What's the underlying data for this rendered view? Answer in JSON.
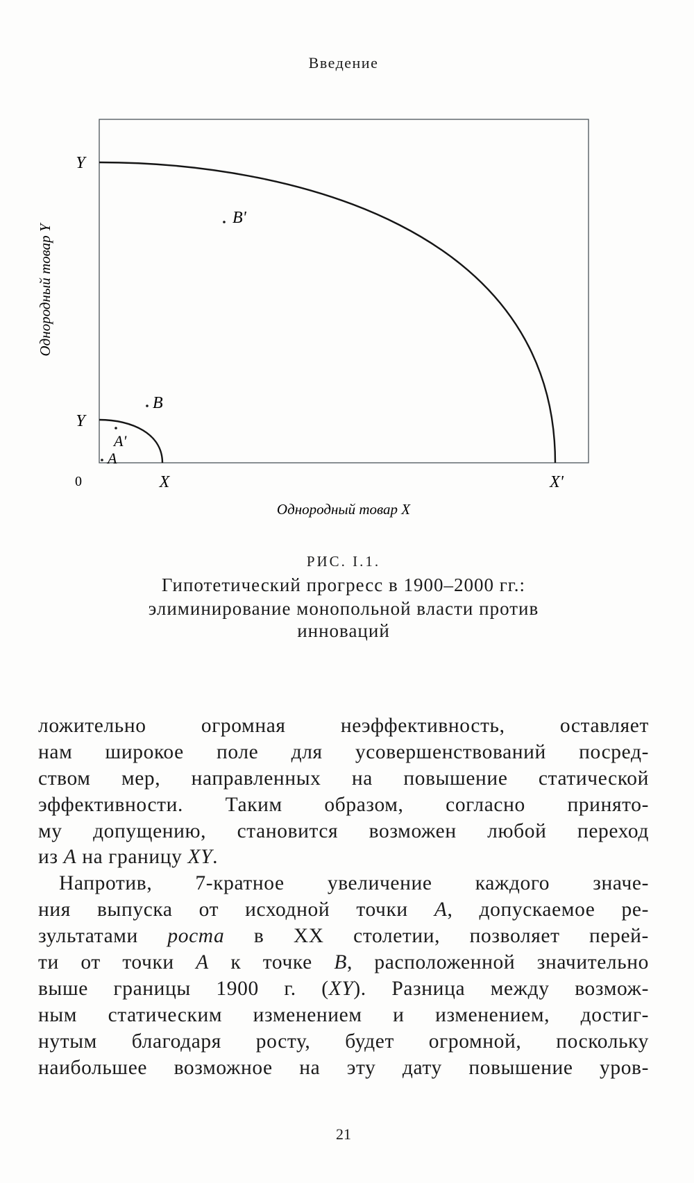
{
  "running_head": "Введение",
  "figure": {
    "y_axis_label": "Однородный товар Y",
    "x_axis_label": "Однородный товар X",
    "origin_label": "0",
    "small_frontier": {
      "x_label": "X",
      "y_label": "Y"
    },
    "large_frontier": {
      "x_label": "X'",
      "y_label": "Y"
    },
    "points": [
      "A",
      "A'",
      "B",
      "B'"
    ]
  },
  "caption": {
    "number": "РИС. I.1.",
    "lines": [
      "Гипотетический прогресс в 1900–2000 гг.:",
      "элиминирование монопольной власти против",
      "инноваций"
    ]
  },
  "body_lines": [
    [
      {
        "t": "ложительно огромная неэффективность, оставляет"
      }
    ],
    [
      {
        "t": "нам широкое поле для усовершенствований посред-"
      }
    ],
    [
      {
        "t": "ством мер, направленных на повышение статической"
      }
    ],
    [
      {
        "t": "эффективности. Таким образом, согласно принято-"
      }
    ],
    [
      {
        "t": "му допущению, становится возможен любой переход"
      }
    ],
    [
      {
        "t": "из "
      },
      {
        "t": "A",
        "i": true
      },
      {
        "t": " на границу "
      },
      {
        "t": "XY",
        "i": true
      },
      {
        "t": "."
      }
    ],
    [
      {
        "t": "Напротив, 7-кратное увеличение каждого значе-"
      }
    ],
    [
      {
        "t": "ния выпуска от исходной точки "
      },
      {
        "t": "A",
        "i": true
      },
      {
        "t": ", допускаемое ре-"
      }
    ],
    [
      {
        "t": "зультатами "
      },
      {
        "t": "роста",
        "i": true
      },
      {
        "t": " в XX столетии, позволяет перей-"
      }
    ],
    [
      {
        "t": "ти от точки "
      },
      {
        "t": "A",
        "i": true
      },
      {
        "t": " к точке "
      },
      {
        "t": "B",
        "i": true
      },
      {
        "t": ", расположенной значительно"
      }
    ],
    [
      {
        "t": "выше границы 1900 г. ("
      },
      {
        "t": "XY",
        "i": true
      },
      {
        "t": "). Разница между возмож-"
      }
    ],
    [
      {
        "t": "ным статическим изменением и изменением, достиг-"
      }
    ],
    [
      {
        "t": "нутым благодаря росту, будет огромной, поскольку"
      }
    ],
    [
      {
        "t": "наибольшее возможное на эту дату повышение уров-"
      }
    ]
  ],
  "page_number": "21"
}
